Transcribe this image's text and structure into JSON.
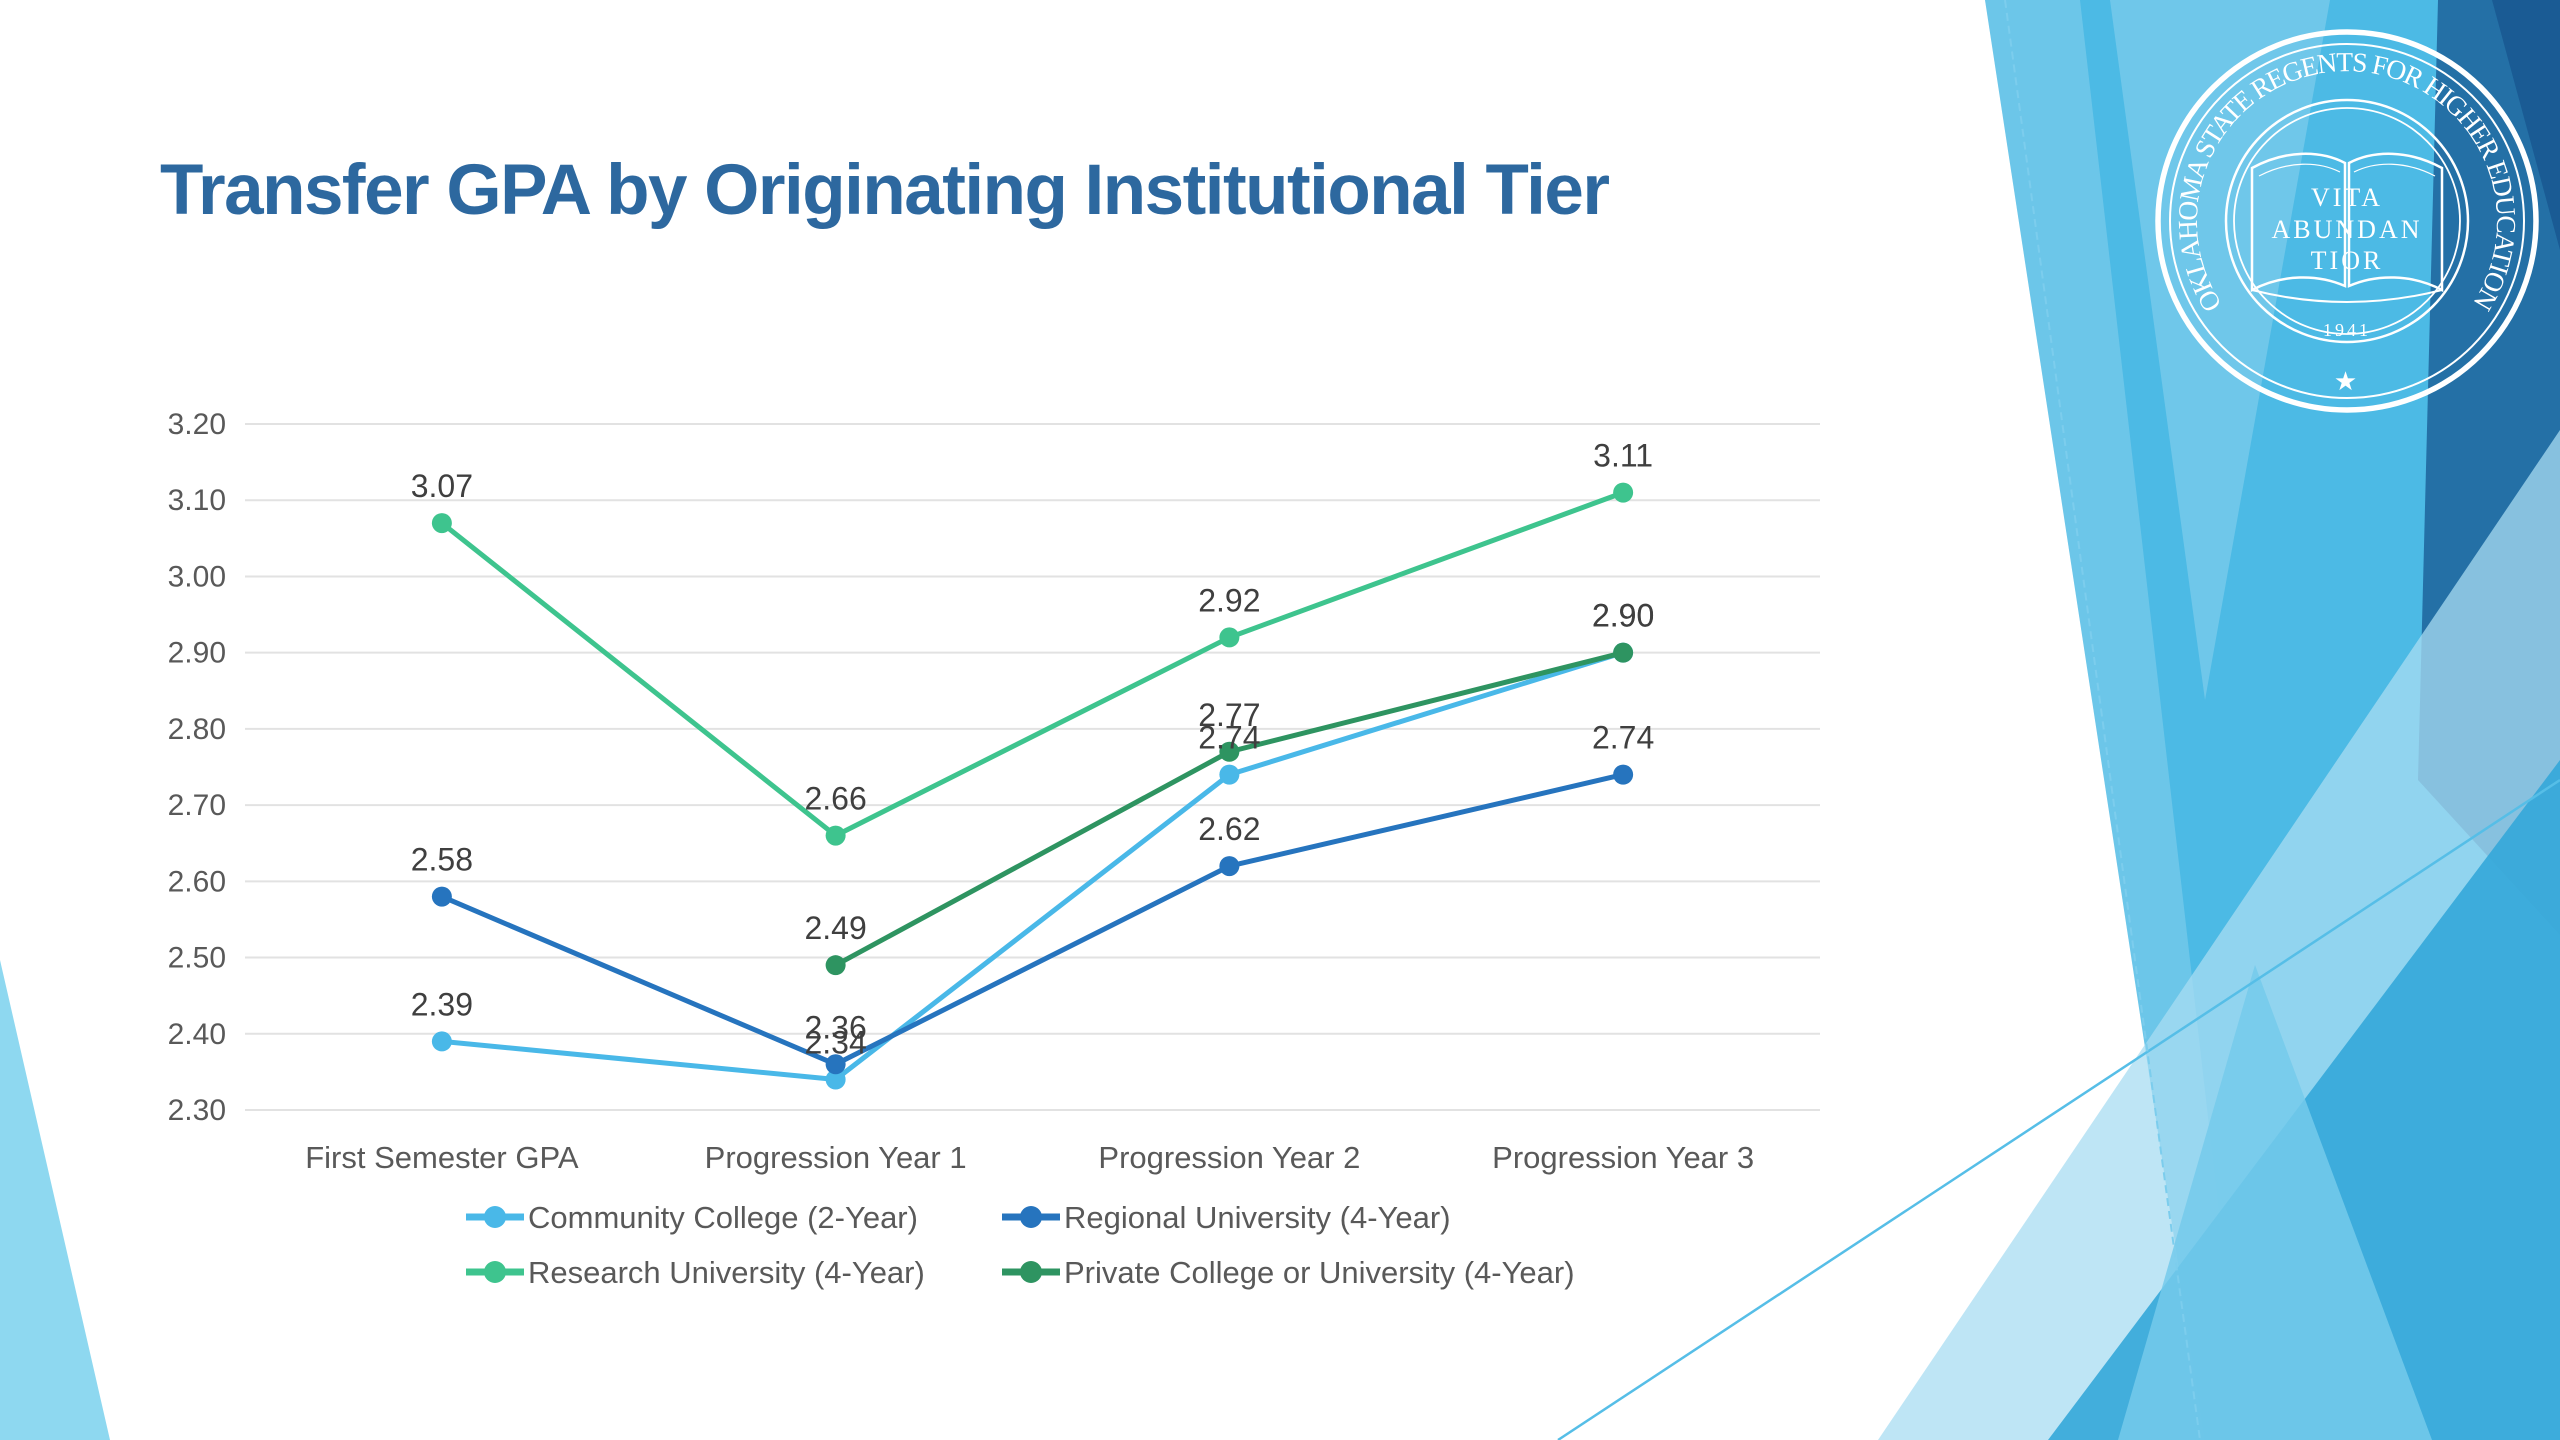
{
  "slide": {
    "title": "Transfer GPA by Originating Institutional Tier",
    "title_color": "#2D689F",
    "seal": {
      "ring_text": "OKLAHOMA STATE REGENTS FOR HIGHER EDUCATION",
      "motto_lines": [
        "VITA",
        "ABUNDAN",
        "TIOR"
      ],
      "year": "1941",
      "star": "★"
    }
  },
  "palette": {
    "sky_mass": "#4CBAE5",
    "dark_blue_wedge": "#2470A6",
    "navy_corner": "#1A5B94",
    "pale_fan": "#A8DCF2",
    "medium_fan": "#34A7D9",
    "light_fan": "#74CAEB",
    "left_wedge": "#8ED8F0",
    "accent_line": "#56BEE7",
    "grid_color": "#E2E2E2",
    "axis_text_color": "#595959",
    "data_label_color": "#3F3F3F"
  },
  "chart_data": {
    "type": "line",
    "title": "",
    "xlabel": "",
    "ylabel": "",
    "categories": [
      "First Semester GPA",
      "Progression Year 1",
      "Progression Year 2",
      "Progression Year 3"
    ],
    "series": [
      {
        "name": "Community College (2-Year)",
        "color": "#49B8E8",
        "values": [
          2.39,
          2.34,
          2.74,
          2.9
        ]
      },
      {
        "name": "Regional University (4-Year)",
        "color": "#2674BE",
        "values": [
          2.58,
          2.36,
          2.62,
          2.74
        ]
      },
      {
        "name": "Research University (4-Year)",
        "color": "#3EC48E",
        "values": [
          3.07,
          2.66,
          2.92,
          3.11
        ]
      },
      {
        "name": "Private College or University (4-Year)",
        "color": "#2E9461",
        "values": [
          null,
          2.49,
          2.77,
          2.9
        ]
      }
    ],
    "ylim": [
      2.3,
      3.2
    ],
    "ytick_step": 0.1,
    "yticks": [
      "3.20",
      "3.10",
      "3.00",
      "2.90",
      "2.80",
      "2.70",
      "2.60",
      "2.50",
      "2.40",
      "2.30"
    ],
    "grid": true,
    "legend_position": "bottom",
    "data_labels": true
  }
}
